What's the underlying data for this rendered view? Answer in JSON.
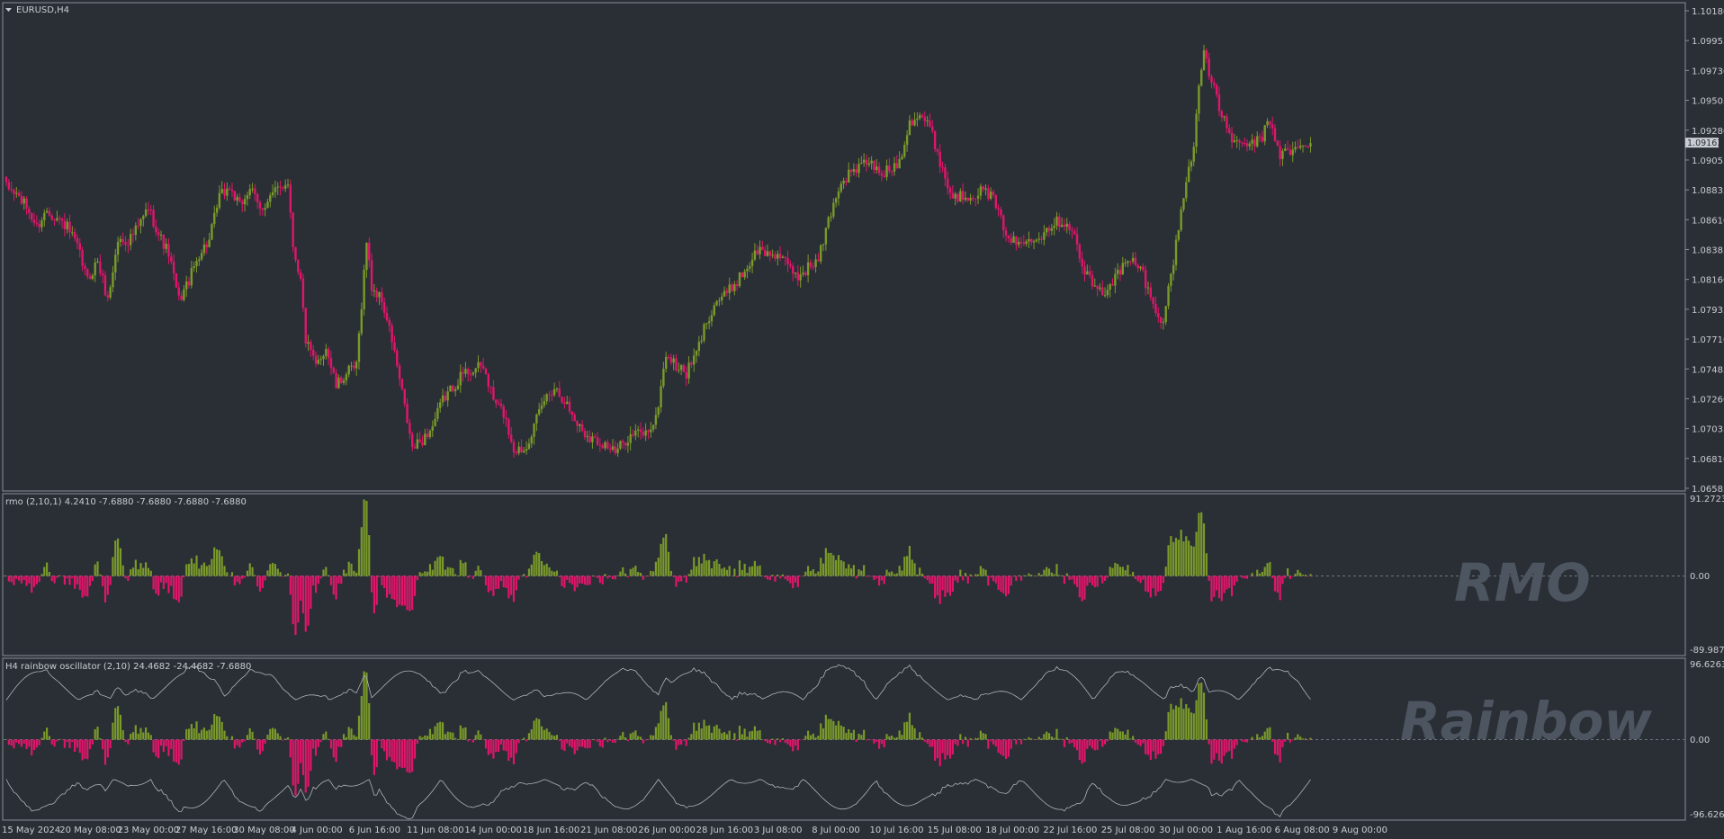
{
  "colors": {
    "background": "#2a2e35",
    "bull": "#7a9a2a",
    "bear": "#e0166b",
    "border": "#8a9099",
    "text": "#c9cdd3",
    "watermark": "#4d5561"
  },
  "symbol": {
    "collapse_icon": "triangle-down-icon",
    "label": "EURUSD,H4"
  },
  "price_axis": {
    "ticks": [
      "1.10180",
      "1.09955",
      "1.09730",
      "1.09505",
      "1.09280",
      "1.09055",
      "1.08835",
      "1.08610",
      "1.08385",
      "1.08160",
      "1.07935",
      "1.07710",
      "1.07485",
      "1.07260",
      "1.07035",
      "1.06810",
      "1.06585"
    ],
    "current_price": "1.09163"
  },
  "rmo": {
    "header": "rmo (2,10,1) 4.2410 -7.6880 -7.6880 -7.6880 -7.6880",
    "max_label": "91.2723",
    "zero_label": "0.00",
    "min_label": "-89.9878",
    "watermark": "RMO"
  },
  "rainbow": {
    "header": "H4 rainbow oscillator (2,10) 24.4682 -24.4682 -7.6880",
    "max_label": "96.6263",
    "zero_label": "0.00",
    "min_label": "-96.6263",
    "watermark": "Rainbow"
  },
  "time_axis": [
    "15 May 2024",
    "20 May 08:00",
    "23 May 00:00",
    "27 May 16:00",
    "30 May 08:00",
    "4 Jun 00:00",
    "6 Jun 16:00",
    "11 Jun 08:00",
    "14 Jun 00:00",
    "18 Jun 16:00",
    "21 Jun 08:00",
    "26 Jun 00:00",
    "28 Jun 16:00",
    "3 Jul 08:00",
    "8 Jul 00:00",
    "10 Jul 16:00",
    "15 Jul 08:00",
    "18 Jul 00:00",
    "22 Jul 16:00",
    "25 Jul 08:00",
    "30 Jul 00:00",
    "1 Aug 16:00",
    "6 Aug 08:00",
    "9 Aug 00:00"
  ],
  "chart_data": [
    {
      "type": "candlestick",
      "title": "EURUSD,H4",
      "ylim": [
        1.06585,
        1.1018
      ],
      "close_anchors": [
        [
          0,
          1.0885
        ],
        [
          4,
          1.088
        ],
        [
          8,
          1.087
        ],
        [
          12,
          1.0855
        ],
        [
          16,
          1.0868
        ],
        [
          20,
          1.0862
        ],
        [
          24,
          1.0855
        ],
        [
          28,
          1.084
        ],
        [
          32,
          1.0815
        ],
        [
          36,
          1.083
        ],
        [
          40,
          1.08
        ],
        [
          44,
          1.0845
        ],
        [
          48,
          1.0845
        ],
        [
          52,
          1.0855
        ],
        [
          56,
          1.087
        ],
        [
          60,
          1.085
        ],
        [
          64,
          1.0835
        ],
        [
          68,
          1.08
        ],
        [
          72,
          1.0815
        ],
        [
          76,
          1.0835
        ],
        [
          80,
          1.0845
        ],
        [
          84,
          1.0878
        ],
        [
          88,
          1.0885
        ],
        [
          92,
          1.087
        ],
        [
          96,
          1.0885
        ],
        [
          100,
          1.0868
        ],
        [
          104,
          1.0878
        ],
        [
          108,
          1.0885
        ],
        [
          111,
          1.089
        ],
        [
          113,
          1.0842
        ],
        [
          116,
          1.0815
        ],
        [
          118,
          1.077
        ],
        [
          122,
          1.075
        ],
        [
          126,
          1.0765
        ],
        [
          130,
          1.0735
        ],
        [
          134,
          1.0745
        ],
        [
          138,
          1.075
        ],
        [
          142,
          1.0845
        ],
        [
          144,
          1.081
        ],
        [
          148,
          1.08
        ],
        [
          152,
          1.077
        ],
        [
          156,
          1.073
        ],
        [
          160,
          1.0688
        ],
        [
          164,
          1.0695
        ],
        [
          168,
          1.0705
        ],
        [
          172,
          1.0725
        ],
        [
          176,
          1.0735
        ],
        [
          180,
          1.0745
        ],
        [
          184,
          1.0748
        ],
        [
          188,
          1.075
        ],
        [
          192,
          1.0725
        ],
        [
          196,
          1.0715
        ],
        [
          200,
          1.0688
        ],
        [
          204,
          1.0688
        ],
        [
          208,
          1.0705
        ],
        [
          212,
          1.0725
        ],
        [
          216,
          1.0735
        ],
        [
          220,
          1.0725
        ],
        [
          224,
          1.071
        ],
        [
          228,
          1.07
        ],
        [
          232,
          1.0695
        ],
        [
          236,
          1.0692
        ],
        [
          240,
          1.0685
        ],
        [
          244,
          1.0695
        ],
        [
          248,
          1.07
        ],
        [
          252,
          1.07
        ],
        [
          256,
          1.071
        ],
        [
          260,
          1.076
        ],
        [
          264,
          1.075
        ],
        [
          268,
          1.0745
        ],
        [
          272,
          1.076
        ],
        [
          276,
          1.0785
        ],
        [
          280,
          1.08
        ],
        [
          284,
          1.0805
        ],
        [
          288,
          1.0815
        ],
        [
          292,
          1.0825
        ],
        [
          296,
          1.0838
        ],
        [
          300,
          1.0835
        ],
        [
          304,
          1.0835
        ],
        [
          308,
          1.0825
        ],
        [
          312,
          1.0818
        ],
        [
          316,
          1.0825
        ],
        [
          320,
          1.083
        ],
        [
          324,
          1.086
        ],
        [
          328,
          1.0885
        ],
        [
          332,
          1.0895
        ],
        [
          336,
          1.09
        ],
        [
          340,
          1.0905
        ],
        [
          344,
          1.0895
        ],
        [
          348,
          1.0898
        ],
        [
          352,
          1.0905
        ],
        [
          356,
          1.0935
        ],
        [
          360,
          1.094
        ],
        [
          364,
          1.093
        ],
        [
          368,
          1.0905
        ],
        [
          372,
          1.088
        ],
        [
          376,
          1.0878
        ],
        [
          380,
          1.088
        ],
        [
          384,
          1.0882
        ],
        [
          388,
          1.088
        ],
        [
          392,
          1.086
        ],
        [
          396,
          1.0845
        ],
        [
          400,
          1.0842
        ],
        [
          404,
          1.0848
        ],
        [
          408,
          1.085
        ],
        [
          412,
          1.0858
        ],
        [
          416,
          1.086
        ],
        [
          420,
          1.0855
        ],
        [
          424,
          1.0825
        ],
        [
          428,
          1.0812
        ],
        [
          432,
          1.0805
        ],
        [
          436,
          1.0815
        ],
        [
          440,
          1.0825
        ],
        [
          444,
          1.083
        ],
        [
          448,
          1.082
        ],
        [
          452,
          1.0795
        ],
        [
          456,
          1.0785
        ],
        [
          460,
          1.083
        ],
        [
          464,
          1.088
        ],
        [
          468,
          1.0915
        ],
        [
          470,
          1.0965
        ],
        [
          472,
          1.099
        ],
        [
          474,
          1.097
        ],
        [
          478,
          1.0945
        ],
        [
          482,
          1.0925
        ],
        [
          486,
          1.0915
        ],
        [
          490,
          1.0918
        ],
        [
          494,
          1.092
        ],
        [
          498,
          1.0935
        ],
        [
          502,
          1.091
        ],
        [
          506,
          1.0912
        ],
        [
          510,
          1.0915
        ],
        [
          514,
          1.0916
        ]
      ]
    },
    {
      "type": "bar",
      "title": "rmo (2,10,1) 4.2410 -7.6880 -7.6880 -7.6880 -7.6880",
      "ylim": [
        -89.9878,
        91.2723
      ],
      "series": [
        {
          "values": []
        }
      ]
    },
    {
      "type": "bar",
      "title": "H4 rainbow oscillator (2,10) 24.4682 -24.4682 -7.6880",
      "ylim": [
        -96.6263,
        96.6263
      ],
      "series": [
        {
          "values": []
        }
      ]
    }
  ]
}
